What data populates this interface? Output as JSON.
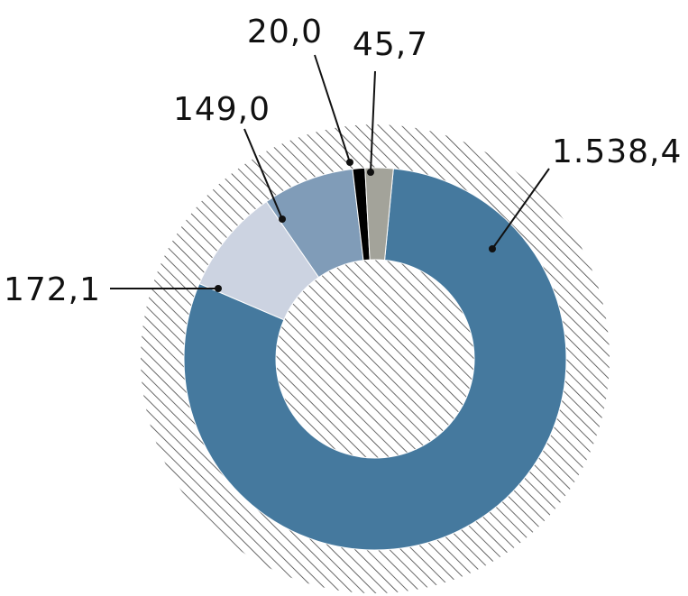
{
  "chart_data": {
    "type": "pie",
    "variant": "donut",
    "start_angle_deg": 5.5,
    "direction": "clockwise",
    "slices": [
      {
        "value": 1538.4,
        "label": "1.538,4",
        "color": "#45799e"
      },
      {
        "value": 172.1,
        "label": "172,1",
        "color": "#ccd3e1"
      },
      {
        "value": 149.0,
        "label": "149,0",
        "color": "#809cb8"
      },
      {
        "value": 20.0,
        "label": "20,0",
        "color": "#000000"
      },
      {
        "value": 45.7,
        "label": "45,7",
        "color": "#a3a39a"
      }
    ],
    "background_pattern": "diagonal-hatch",
    "hatch_color": "#444444"
  }
}
